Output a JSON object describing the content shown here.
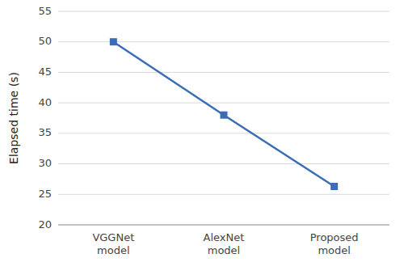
{
  "chart_data": {
    "type": "line",
    "categories": [
      "VGGNet\nmodel",
      "AlexNet\nmodel",
      "Proposed\nmodel"
    ],
    "values": [
      50.0,
      38.0,
      26.3
    ],
    "ylabel": "Elapsed time (s)",
    "ylim": [
      20,
      55
    ],
    "yticks": [
      20,
      25,
      30,
      35,
      40,
      45,
      50,
      55
    ],
    "color": "#3a6db5",
    "marker": "square",
    "grid": true
  }
}
